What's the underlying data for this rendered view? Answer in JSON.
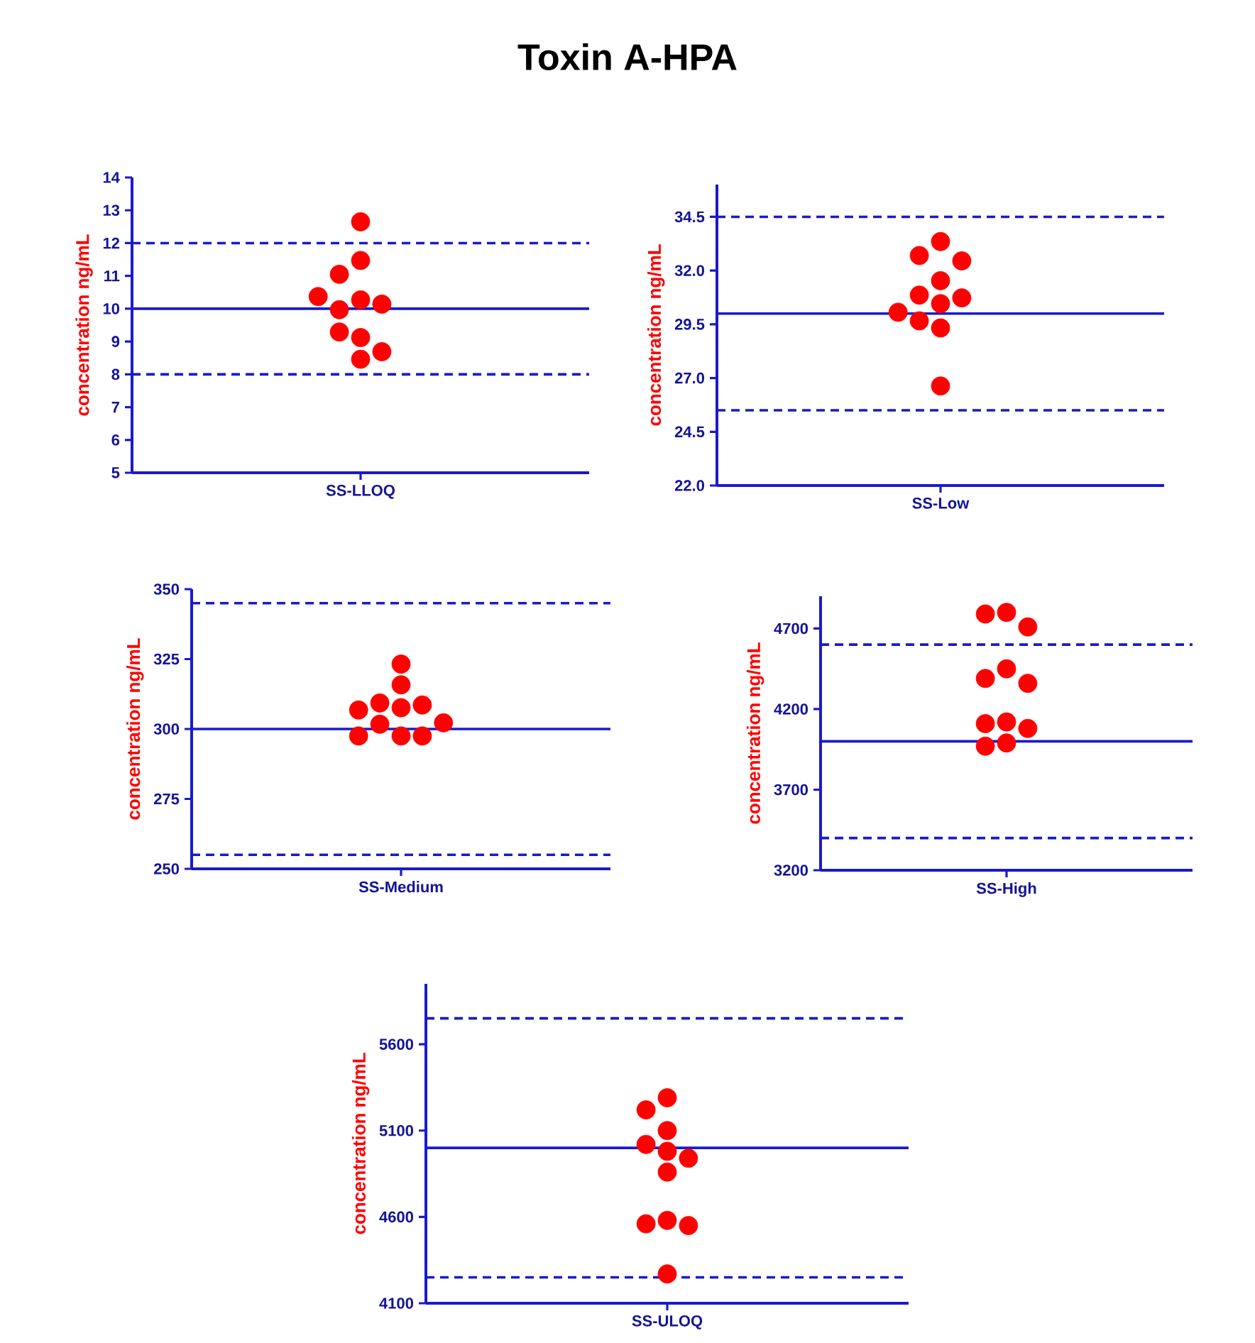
{
  "chart_data": [
    {
      "type": "scatter",
      "title": "Toxin A-HPA",
      "categories": [
        "SS-LLOQ"
      ],
      "ylabel": "concentration ng/mL",
      "ylim": [
        5,
        14
      ],
      "yticks": [
        5,
        6,
        7,
        8,
        9,
        10,
        11,
        12,
        13,
        14
      ],
      "marker": "circle",
      "series": [
        {
          "color": "#ff0000",
          "x": [
            "SS-LLOQ",
            "SS-LLOQ",
            "SS-LLOQ",
            "SS-LLOQ",
            "SS-LLOQ",
            "SS-LLOQ",
            "SS-LLOQ",
            "SS-LLOQ",
            "SS-LLOQ",
            "SS-LLOQ",
            "SS-LLOQ"
          ],
          "values": [
            12.65,
            11.47,
            11.05,
            10.27,
            9.97,
            10.14,
            10.37,
            9.12,
            9.29,
            8.46,
            8.69
          ]
        }
      ],
      "ref_lines": [
        {
          "axis": "y",
          "value": 10,
          "color": "#1a1acc",
          "line_style": "solid"
        },
        {
          "axis": "y",
          "value": 12,
          "color": "#1a1acc",
          "line_style": "dashed"
        },
        {
          "axis": "y",
          "value": 8,
          "color": "#1a1acc",
          "line_style": "dashed"
        }
      ]
    },
    {
      "type": "scatter",
      "categories": [
        "SS-Low"
      ],
      "ylabel": "concentration ng/mL",
      "ylim": [
        22,
        36
      ],
      "yticks": [
        {
          "value": 22,
          "label": "22.0"
        },
        {
          "value": 24.5,
          "label": "24.5"
        },
        {
          "value": 27,
          "label": "27.0"
        },
        {
          "value": 29.5,
          "label": "29.5"
        },
        {
          "value": 32,
          "label": "32.0"
        },
        {
          "value": 34.5,
          "label": "34.5"
        }
      ],
      "marker": "circle",
      "series": [
        {
          "color": "#ff0000",
          "x": [
            "SS-Low",
            "SS-Low",
            "SS-Low",
            "SS-Low",
            "SS-Low",
            "SS-Low",
            "SS-Low",
            "SS-Low",
            "SS-Low",
            "SS-Low",
            "SS-Low"
          ],
          "values": [
            33.35,
            32.7,
            32.45,
            31.53,
            30.86,
            30.73,
            30.46,
            30.06,
            29.66,
            29.33,
            26.63
          ]
        }
      ],
      "ref_lines": [
        {
          "axis": "y",
          "value": 30,
          "color": "#1a1acc",
          "line_style": "solid"
        },
        {
          "axis": "y",
          "value": 34.5,
          "color": "#1a1acc",
          "line_style": "dashed"
        },
        {
          "axis": "y",
          "value": 25.5,
          "color": "#1a1acc",
          "line_style": "dashed"
        }
      ]
    },
    {
      "type": "scatter",
      "categories": [
        "SS-Medium"
      ],
      "ylabel": "concentration ng/mL",
      "ylim": [
        250,
        350
      ],
      "yticks": [
        250,
        275,
        300,
        325,
        350
      ],
      "marker": "circle",
      "series": [
        {
          "color": "#ff0000",
          "x": [
            "SS-Medium",
            "SS-Medium",
            "SS-Medium",
            "SS-Medium",
            "SS-Medium",
            "SS-Medium",
            "SS-Medium",
            "SS-Medium",
            "SS-Medium",
            "SS-Medium",
            "SS-Medium"
          ],
          "values": [
            323.2,
            315.8,
            309.3,
            308.6,
            307.6,
            306.8,
            302.2,
            301.7,
            297.5,
            297.5,
            297.5
          ]
        }
      ],
      "ref_lines": [
        {
          "axis": "y",
          "value": 300,
          "color": "#1a1acc",
          "line_style": "solid"
        },
        {
          "axis": "y",
          "value": 345,
          "color": "#1a1acc",
          "line_style": "dashed"
        },
        {
          "axis": "y",
          "value": 255,
          "color": "#1a1acc",
          "line_style": "dashed"
        }
      ]
    },
    {
      "type": "scatter",
      "categories": [
        "SS-High"
      ],
      "ylabel": "concentration ng/mL",
      "ylim": [
        3200,
        4900
      ],
      "yticks": [
        3200,
        3700,
        4200,
        4700
      ],
      "marker": "circle",
      "series": [
        {
          "color": "#ff0000",
          "x": [
            "SS-High",
            "SS-High",
            "SS-High",
            "SS-High",
            "SS-High",
            "SS-High",
            "SS-High",
            "SS-High",
            "SS-High",
            "SS-High",
            "SS-High"
          ],
          "values": [
            4800,
            4790,
            4710,
            4450,
            4390,
            4360,
            4120,
            4110,
            4080,
            3990,
            3970
          ]
        }
      ],
      "ref_lines": [
        {
          "axis": "y",
          "value": 4000,
          "color": "#1a1acc",
          "line_style": "solid"
        },
        {
          "axis": "y",
          "value": 4600,
          "color": "#1a1acc",
          "line_style": "dashed"
        },
        {
          "axis": "y",
          "value": 3400,
          "color": "#1a1acc",
          "line_style": "dashed"
        }
      ]
    },
    {
      "type": "scatter",
      "categories": [
        "SS-ULOQ"
      ],
      "ylabel": "concentration ng/mL",
      "ylim": [
        4100,
        5950
      ],
      "yticks": [
        4100,
        4600,
        5100,
        5600
      ],
      "marker": "circle",
      "series": [
        {
          "color": "#ff0000",
          "x": [
            "SS-ULOQ",
            "SS-ULOQ",
            "SS-ULOQ",
            "SS-ULOQ",
            "SS-ULOQ",
            "SS-ULOQ",
            "SS-ULOQ",
            "SS-ULOQ",
            "SS-ULOQ",
            "SS-ULOQ",
            "SS-ULOQ"
          ],
          "values": [
            5290,
            5220,
            5100,
            5020,
            4980,
            4940,
            4860,
            4580,
            4560,
            4550,
            4270
          ]
        }
      ],
      "ref_lines": [
        {
          "axis": "y",
          "value": 5000,
          "color": "#1a1acc",
          "line_style": "solid"
        },
        {
          "axis": "y",
          "value": 5750,
          "color": "#1a1acc",
          "line_style": "dashed"
        },
        {
          "axis": "y",
          "value": 4250,
          "color": "#1a1acc",
          "line_style": "dashed"
        }
      ]
    }
  ]
}
